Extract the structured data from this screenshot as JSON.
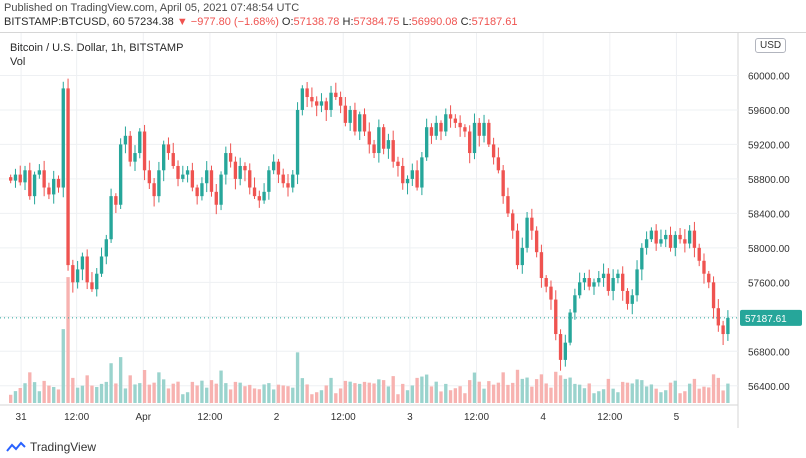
{
  "header": {
    "published": "Published on TradingView.com, April 05, 2021 07:48:54 UTC",
    "symbol": "BITSTAMP:BTCUSD, 60",
    "last": "57234.38",
    "change": "▼ −977.80 (−1.68%)",
    "ohlc": [
      {
        "label": "O:",
        "value": "57138.78"
      },
      {
        "label": "H:",
        "value": "57384.75"
      },
      {
        "label": "L:",
        "value": "56990.08"
      },
      {
        "label": "C:",
        "value": "57187.61"
      }
    ]
  },
  "legend": {
    "title": "Bitcoin / U.S. Dollar, 1h, BITSTAMP",
    "vol": "Vol"
  },
  "currency_button": "USD",
  "price_label": "57187.61",
  "footer": {
    "brand": "TradingView"
  },
  "colors": {
    "up": "#26a69a",
    "down": "#ef5350",
    "up_vol": "#9ad3cd",
    "down_vol": "#f7b2b0",
    "grid": "#eef0f3"
  },
  "chart_data": {
    "type": "candlestick",
    "title": "Bitcoin / U.S. Dollar, 1h, BITSTAMP",
    "y_axis_ticks": [
      "56400.00",
      "56800.00",
      "57200.00",
      "57600.00",
      "58000.00",
      "58400.00",
      "58800.00",
      "59200.00",
      "59600.00",
      "60000.00"
    ],
    "x_axis_ticks": [
      "31",
      "12:00",
      "Apr",
      "12:00",
      "2",
      "12:00",
      "3",
      "12:00",
      "4",
      "12:00",
      "5"
    ],
    "ylim": [
      56200,
      60400
    ],
    "last_price": 57187.61,
    "candles_close": [
      58780,
      58850,
      58760,
      58900,
      58600,
      58850,
      58900,
      58700,
      58620,
      58800,
      58700,
      59850,
      57800,
      57600,
      57750,
      57900,
      57600,
      57520,
      57700,
      57900,
      58100,
      58600,
      58500,
      59200,
      59300,
      59000,
      59100,
      59350,
      58900,
      58750,
      58600,
      58900,
      59200,
      59100,
      58950,
      58800,
      58850,
      58900,
      58700,
      58600,
      58750,
      58900,
      58650,
      58500,
      58850,
      59100,
      59000,
      58800,
      58950,
      58900,
      58700,
      58600,
      58550,
      58650,
      58900,
      59000,
      58850,
      58750,
      58700,
      58850,
      59600,
      59850,
      59750,
      59700,
      59650,
      59700,
      59600,
      59800,
      59750,
      59650,
      59450,
      59600,
      59350,
      59550,
      59350,
      59200,
      59100,
      59400,
      59150,
      59250,
      59000,
      58950,
      58750,
      58800,
      58900,
      58700,
      59050,
      59400,
      59300,
      59450,
      59350,
      59550,
      59500,
      59450,
      59400,
      59350,
      59100,
      59450,
      59300,
      59450,
      59200,
      59050,
      58900,
      58600,
      58400,
      58200,
      57800,
      58000,
      58350,
      58200,
      57950,
      57650,
      57550,
      57400,
      57000,
      56700,
      56900,
      57250,
      57450,
      57600,
      57650,
      57550,
      57600,
      57650,
      57700,
      57500,
      57650,
      57700,
      57500,
      57350,
      57450,
      57750,
      58000,
      58100,
      58200,
      58050,
      58100,
      58150,
      58000,
      58150,
      58100,
      58050,
      58200,
      58000,
      57850,
      57700,
      57600,
      57300,
      57100,
      57000,
      57187.61
    ],
    "volume_scale": "relative"
  }
}
